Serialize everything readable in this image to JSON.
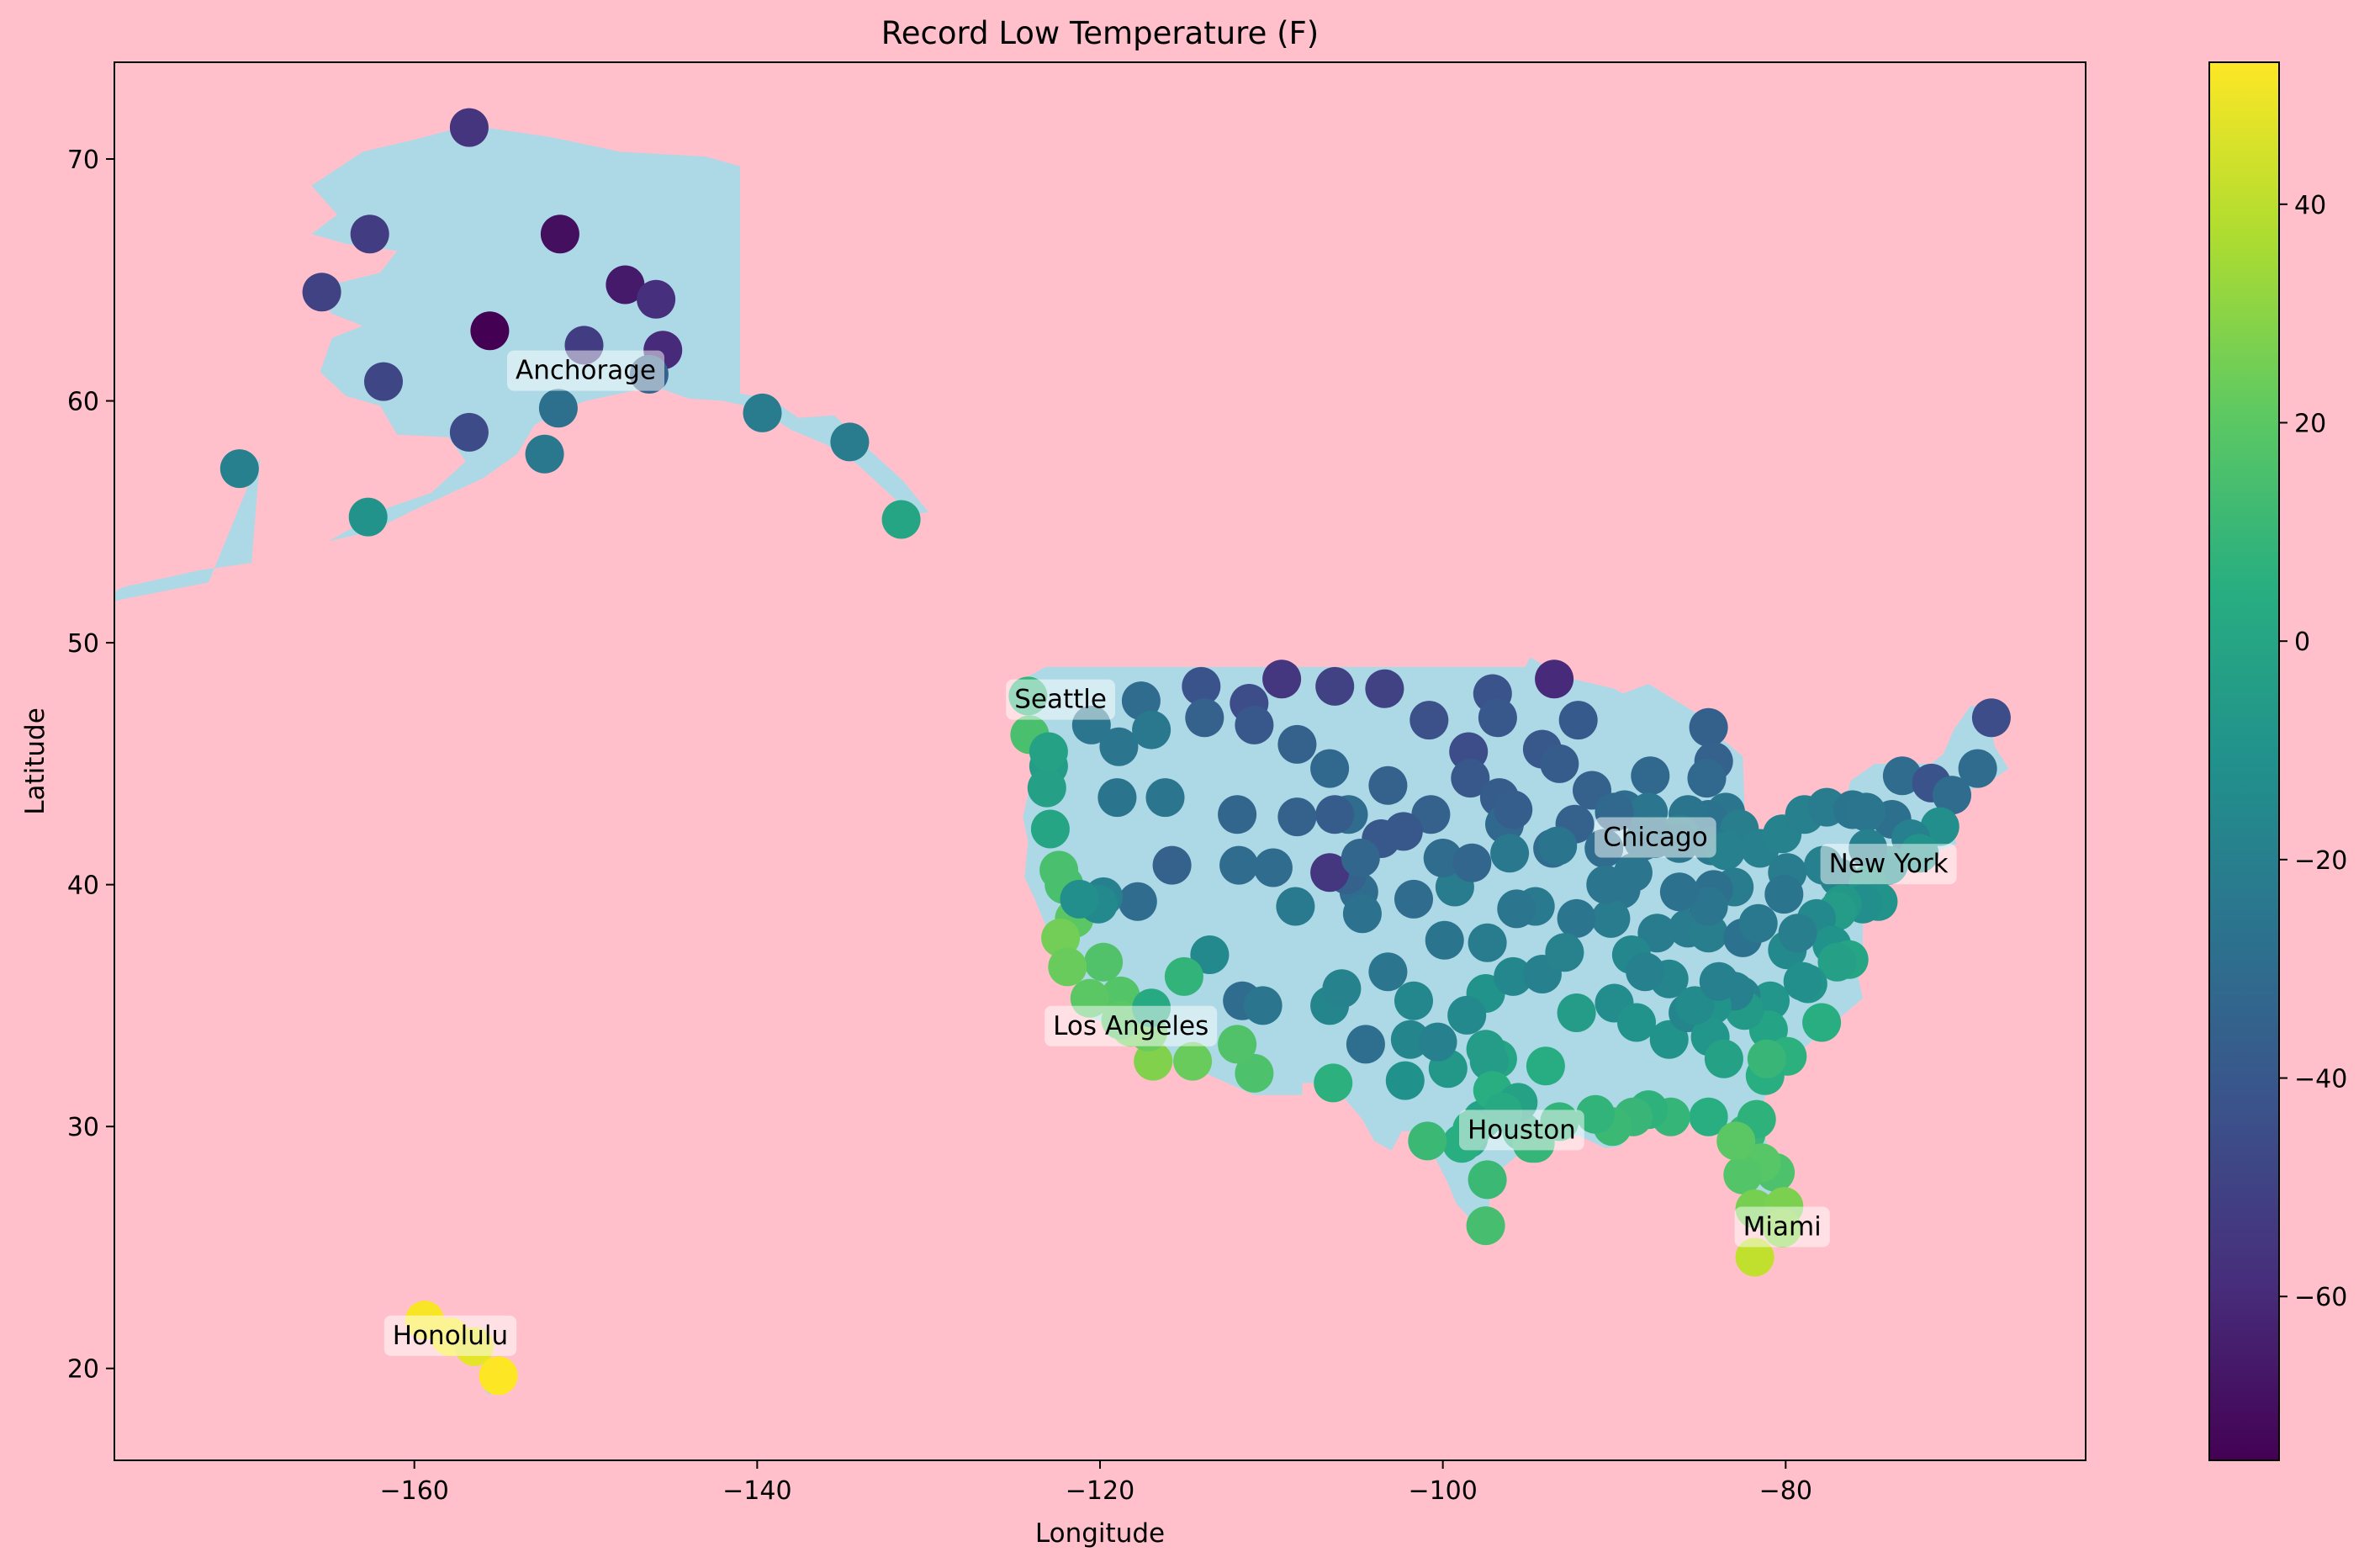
{
  "chart_data": {
    "type": "scatter",
    "title": "Record Low Temperature (F)",
    "xlabel": "Longitude",
    "ylabel": "Latitude",
    "xlim": [
      -177.5,
      -62.5
    ],
    "ylim": [
      16.2,
      74.0
    ],
    "xticks": [
      -160,
      -140,
      -120,
      -100,
      -80
    ],
    "yticks": [
      20,
      30,
      40,
      50,
      60,
      70
    ],
    "grid": false,
    "colorbar": {
      "colormap": "viridis",
      "min": -75,
      "max": 53,
      "ticks": [
        -60,
        -40,
        -20,
        0,
        20,
        40
      ]
    },
    "colors": {
      "background": "#ffc0cb",
      "land": "#add8e6",
      "label_box": "#ffffff"
    },
    "annotations": [
      {
        "label": "Anchorage",
        "lon": -150.0,
        "lat": 61.2
      },
      {
        "label": "Seattle",
        "lon": -122.3,
        "lat": 47.6
      },
      {
        "label": "Chicago",
        "lon": -87.6,
        "lat": 41.9
      },
      {
        "label": "New York",
        "lon": -74.0,
        "lat": 40.8
      },
      {
        "label": "Los Angeles",
        "lon": -118.2,
        "lat": 34.1
      },
      {
        "label": "Houston",
        "lon": -95.4,
        "lat": 29.8
      },
      {
        "label": "Miami",
        "lon": -80.2,
        "lat": 25.8
      },
      {
        "label": "Honolulu",
        "lon": -157.9,
        "lat": 21.3
      }
    ],
    "points": [
      [
        -156.8,
        71.3,
        -56
      ],
      [
        -162.6,
        66.9,
        -52
      ],
      [
        -151.5,
        66.9,
        -70
      ],
      [
        -165.4,
        64.5,
        -50
      ],
      [
        -147.7,
        64.8,
        -66
      ],
      [
        -145.9,
        64.2,
        -58
      ],
      [
        -155.6,
        62.9,
        -75
      ],
      [
        -150.1,
        62.3,
        -52
      ],
      [
        -145.5,
        62.1,
        -60
      ],
      [
        -146.3,
        61.1,
        -35
      ],
      [
        -161.8,
        60.8,
        -48
      ],
      [
        -151.6,
        59.7,
        -28
      ],
      [
        -139.7,
        59.5,
        -22
      ],
      [
        -156.8,
        58.7,
        -46
      ],
      [
        -152.4,
        57.8,
        -24
      ],
      [
        -134.6,
        58.3,
        -22
      ],
      [
        -170.2,
        57.2,
        -20
      ],
      [
        -162.7,
        55.2,
        -10
      ],
      [
        -131.6,
        55.1,
        0
      ],
      [
        -124.2,
        47.8,
        8
      ],
      [
        -124.1,
        46.2,
        15
      ],
      [
        -123.0,
        44.9,
        -5
      ],
      [
        -123.1,
        44.0,
        -3
      ],
      [
        -122.9,
        42.3,
        0
      ],
      [
        -122.4,
        40.6,
        15
      ],
      [
        -123.0,
        45.5,
        -2
      ],
      [
        -120.5,
        46.6,
        -25
      ],
      [
        -117.6,
        47.6,
        -30
      ],
      [
        -114.1,
        48.2,
        -42
      ],
      [
        -113.9,
        46.9,
        -35
      ],
      [
        -111.3,
        47.5,
        -45
      ],
      [
        -109.4,
        48.5,
        -55
      ],
      [
        -106.3,
        48.2,
        -50
      ],
      [
        -103.4,
        48.1,
        -50
      ],
      [
        -100.8,
        46.8,
        -44
      ],
      [
        -97.1,
        47.9,
        -42
      ],
      [
        -96.8,
        46.9,
        -40
      ],
      [
        -93.5,
        48.5,
        -60
      ],
      [
        -92.1,
        46.8,
        -39
      ],
      [
        -118.9,
        45.7,
        -25
      ],
      [
        -117.0,
        46.4,
        -24
      ],
      [
        -111.0,
        46.6,
        -40
      ],
      [
        -108.5,
        45.8,
        -35
      ],
      [
        -106.6,
        44.8,
        -32
      ],
      [
        -103.2,
        44.1,
        -35
      ],
      [
        -98.5,
        45.5,
        -45
      ],
      [
        -98.4,
        44.4,
        -40
      ],
      [
        -96.7,
        43.6,
        -38
      ],
      [
        -94.2,
        45.6,
        -40
      ],
      [
        -93.2,
        45.0,
        -38
      ],
      [
        -91.3,
        43.9,
        -35
      ],
      [
        -89.4,
        43.1,
        -30
      ],
      [
        -87.9,
        44.5,
        -32
      ],
      [
        -88.0,
        43.0,
        -25
      ],
      [
        -84.5,
        46.5,
        -36
      ],
      [
        -84.2,
        45.1,
        -35
      ],
      [
        -83.5,
        43.0,
        -25
      ],
      [
        -84.5,
        42.7,
        -27
      ],
      [
        -85.7,
        42.9,
        -26
      ],
      [
        -86.2,
        42.1,
        -21
      ],
      [
        -82.7,
        42.3,
        -21
      ],
      [
        -84.6,
        44.4,
        -32
      ],
      [
        -119.0,
        43.6,
        -26
      ],
      [
        -116.2,
        43.6,
        -25
      ],
      [
        -112.0,
        42.9,
        -33
      ],
      [
        -105.5,
        42.9,
        -30
      ],
      [
        -106.3,
        42.9,
        -38
      ],
      [
        -108.5,
        42.8,
        -35
      ],
      [
        -103.6,
        41.9,
        -40
      ],
      [
        -100.7,
        42.9,
        -35
      ],
      [
        -96.4,
        42.5,
        -32
      ],
      [
        -93.6,
        41.5,
        -30
      ],
      [
        -92.3,
        42.5,
        -35
      ],
      [
        -90.6,
        41.5,
        -30
      ],
      [
        -90.0,
        43.0,
        -32
      ],
      [
        -88.3,
        41.8,
        -27
      ],
      [
        -87.6,
        41.9,
        -27
      ],
      [
        -86.2,
        41.7,
        -25
      ],
      [
        -84.3,
        41.6,
        -24
      ],
      [
        -83.5,
        41.4,
        -20
      ],
      [
        -81.5,
        41.5,
        -20
      ],
      [
        -80.2,
        42.1,
        -18
      ],
      [
        -78.9,
        42.9,
        -20
      ],
      [
        -77.6,
        43.2,
        -22
      ],
      [
        -76.1,
        43.1,
        -26
      ],
      [
        -73.8,
        42.7,
        -28
      ],
      [
        -75.3,
        43.0,
        -25
      ],
      [
        -73.2,
        44.5,
        -30
      ],
      [
        -71.5,
        44.2,
        -42
      ],
      [
        -70.3,
        43.7,
        -30
      ],
      [
        -68.8,
        44.8,
        -30
      ],
      [
        -68.0,
        46.9,
        -45
      ],
      [
        -71.0,
        42.4,
        -12
      ],
      [
        -72.7,
        41.9,
        -20
      ],
      [
        -72.2,
        41.3,
        -10
      ],
      [
        -74.0,
        40.8,
        -12
      ],
      [
        -75.2,
        41.5,
        -20
      ],
      [
        -76.9,
        40.3,
        -18
      ],
      [
        -77.8,
        40.8,
        -20
      ],
      [
        -79.9,
        40.5,
        -22
      ],
      [
        -75.2,
        40.0,
        -7
      ],
      [
        -74.6,
        39.3,
        -10
      ],
      [
        -75.5,
        39.2,
        -12
      ],
      [
        -76.7,
        39.2,
        -7
      ],
      [
        -77.0,
        38.9,
        -5
      ],
      [
        -78.2,
        38.6,
        -15
      ],
      [
        -79.9,
        37.3,
        -15
      ],
      [
        -77.3,
        37.5,
        -10
      ],
      [
        -76.3,
        36.9,
        0
      ],
      [
        -77.0,
        36.8,
        -3
      ],
      [
        -78.7,
        35.9,
        -10
      ],
      [
        -80.9,
        35.2,
        -8
      ],
      [
        -82.6,
        35.4,
        -18
      ],
      [
        -79.0,
        36.0,
        -12
      ],
      [
        -77.9,
        34.3,
        5
      ],
      [
        -81.0,
        34.0,
        -1
      ],
      [
        -82.4,
        34.8,
        -6
      ],
      [
        -79.9,
        32.9,
        6
      ],
      [
        -81.2,
        32.1,
        5
      ],
      [
        -83.0,
        35.6,
        -20
      ],
      [
        -84.3,
        35.0,
        -10
      ],
      [
        -86.8,
        36.1,
        -17
      ],
      [
        -85.7,
        38.2,
        -22
      ],
      [
        -84.5,
        38.0,
        -21
      ],
      [
        -83.0,
        39.9,
        -22
      ],
      [
        -84.2,
        39.8,
        -28
      ],
      [
        -84.5,
        39.1,
        -25
      ],
      [
        -86.2,
        39.7,
        -27
      ],
      [
        -87.5,
        38.0,
        -22
      ],
      [
        -88.9,
        40.5,
        -25
      ],
      [
        -89.6,
        39.8,
        -25
      ],
      [
        -90.2,
        38.6,
        -22
      ],
      [
        -92.2,
        38.6,
        -25
      ],
      [
        -94.6,
        39.1,
        -23
      ],
      [
        -95.7,
        39.0,
        -25
      ],
      [
        -97.4,
        37.6,
        -22
      ],
      [
        -99.9,
        37.7,
        -26
      ],
      [
        -101.7,
        39.4,
        -30
      ],
      [
        -104.9,
        39.7,
        -30
      ],
      [
        -104.7,
        38.8,
        -27
      ],
      [
        -105.6,
        40.4,
        -35
      ],
      [
        -106.6,
        40.5,
        -55
      ],
      [
        -108.6,
        39.1,
        -23
      ],
      [
        -109.9,
        40.7,
        -30
      ],
      [
        -111.9,
        40.8,
        -30
      ],
      [
        -113.6,
        37.1,
        -15
      ],
      [
        -115.1,
        36.2,
        8
      ],
      [
        -117.8,
        39.3,
        -30
      ],
      [
        -119.8,
        39.5,
        -20
      ],
      [
        -115.8,
        40.8,
        -35
      ],
      [
        -111.7,
        35.2,
        -30
      ],
      [
        -110.5,
        35.0,
        -25
      ],
      [
        -106.6,
        35.0,
        -17
      ],
      [
        -103.2,
        36.4,
        -25
      ],
      [
        -101.7,
        35.2,
        -16
      ],
      [
        -97.5,
        35.5,
        -10
      ],
      [
        -95.9,
        36.2,
        -16
      ],
      [
        -94.2,
        36.3,
        -20
      ],
      [
        -92.2,
        34.7,
        -5
      ],
      [
        -90.0,
        35.1,
        -13
      ],
      [
        -88.7,
        34.3,
        -10
      ],
      [
        -86.8,
        33.6,
        -10
      ],
      [
        -85.7,
        34.7,
        -17
      ],
      [
        -84.4,
        33.7,
        -8
      ],
      [
        -83.6,
        32.8,
        -2
      ],
      [
        -84.5,
        30.4,
        5
      ],
      [
        -86.7,
        30.4,
        9
      ],
      [
        -88.0,
        30.7,
        7
      ],
      [
        -88.9,
        30.4,
        10
      ],
      [
        -90.1,
        30.0,
        11
      ],
      [
        -91.1,
        30.5,
        8
      ],
      [
        -93.2,
        30.2,
        8
      ],
      [
        -94.0,
        32.5,
        4
      ],
      [
        -96.8,
        32.8,
        0
      ],
      [
        -97.3,
        32.7,
        -5
      ],
      [
        -97.7,
        30.3,
        -2
      ],
      [
        -98.5,
        29.5,
        0
      ],
      [
        -95.4,
        29.8,
        5
      ],
      [
        -94.6,
        29.3,
        10
      ],
      [
        -97.4,
        27.8,
        11
      ],
      [
        -97.5,
        25.9,
        14
      ],
      [
        -99.7,
        32.4,
        -7
      ],
      [
        -101.9,
        33.6,
        -17
      ],
      [
        -102.2,
        31.9,
        -11
      ],
      [
        -106.4,
        31.8,
        6
      ],
      [
        -104.5,
        33.4,
        -29
      ],
      [
        -105.9,
        35.7,
        -18
      ],
      [
        -111.0,
        32.2,
        16
      ],
      [
        -112.0,
        33.4,
        17
      ],
      [
        -114.6,
        32.7,
        23
      ],
      [
        -116.9,
        32.7,
        28
      ],
      [
        -117.2,
        33.9,
        23
      ],
      [
        -118.2,
        34.1,
        25
      ],
      [
        -118.8,
        35.4,
        18
      ],
      [
        -119.8,
        36.8,
        17
      ],
      [
        -121.5,
        38.6,
        20
      ],
      [
        -122.3,
        37.8,
        25
      ],
      [
        -121.9,
        36.6,
        23
      ],
      [
        -122.1,
        40.0,
        15
      ],
      [
        -118.8,
        34.4,
        20
      ],
      [
        -117.0,
        34.9,
        3
      ],
      [
        -120.6,
        35.3,
        20
      ],
      [
        -120.1,
        39.2,
        -15
      ],
      [
        -121.2,
        39.4,
        -12
      ],
      [
        -100.3,
        33.5,
        -20
      ],
      [
        -98.6,
        34.6,
        -15
      ],
      [
        -99.3,
        39.9,
        -22
      ],
      [
        -100.0,
        41.1,
        -30
      ],
      [
        -104.8,
        41.1,
        -33
      ],
      [
        -102.3,
        42.2,
        -40
      ],
      [
        -96.1,
        41.3,
        -24
      ],
      [
        -95.9,
        43.1,
        -37
      ],
      [
        -98.3,
        40.9,
        -33
      ],
      [
        -92.9,
        37.2,
        -19
      ],
      [
        -93.3,
        41.6,
        -26
      ],
      [
        -90.5,
        40.0,
        -25
      ],
      [
        -89.0,
        37.1,
        -16
      ],
      [
        -88.2,
        36.4,
        -20
      ],
      [
        -85.3,
        35.0,
        -14
      ],
      [
        -83.9,
        36.0,
        -20
      ],
      [
        -82.5,
        37.8,
        -27
      ],
      [
        -81.6,
        38.4,
        -24
      ],
      [
        -80.1,
        39.6,
        -26
      ],
      [
        -79.3,
        38.0,
        -21
      ],
      [
        -81.1,
        32.8,
        10
      ],
      [
        -82.3,
        29.7,
        10
      ],
      [
        -81.7,
        30.3,
        7
      ],
      [
        -80.6,
        28.1,
        16
      ],
      [
        -81.4,
        28.5,
        19
      ],
      [
        -82.5,
        28.0,
        18
      ],
      [
        -81.8,
        26.6,
        26
      ],
      [
        -80.1,
        26.7,
        27
      ],
      [
        -80.2,
        25.8,
        30
      ],
      [
        -81.8,
        24.6,
        41
      ],
      [
        -82.9,
        29.4,
        20
      ],
      [
        -97.1,
        31.5,
        5
      ],
      [
        -97.5,
        33.2,
        -5
      ],
      [
        -95.6,
        31.0,
        -2
      ],
      [
        -96.5,
        30.6,
        3
      ],
      [
        -98.3,
        29.9,
        5
      ],
      [
        -98.9,
        29.3,
        5
      ],
      [
        -100.9,
        29.4,
        11
      ],
      [
        -94.8,
        29.3,
        9
      ],
      [
        -159.4,
        22.0,
        52
      ],
      [
        -157.9,
        21.3,
        52
      ],
      [
        -156.5,
        20.9,
        48
      ],
      [
        -155.1,
        19.7,
        53
      ]
    ]
  }
}
